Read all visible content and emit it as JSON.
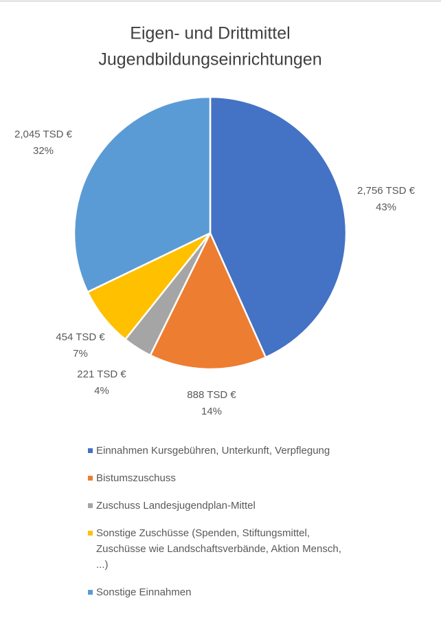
{
  "chart_data": {
    "type": "pie",
    "title": [
      "Eigen- und Drittmittel",
      "Jugendbildungseinrichtungen"
    ],
    "categories": [
      "Einnahmen Kursgebühren, Unterkunft, Verpflegung",
      "Bistumszuschuss",
      "Zuschuss Landesjugendplan-Mittel",
      "Sonstige Zuschüsse (Spenden, Stiftungsmittel, Zuschüsse wie Landschaftsverbände, Aktion Mensch, ...)",
      "Sonstige Einnahmen"
    ],
    "values": [
      2756,
      888,
      221,
      454,
      2045
    ],
    "value_labels": [
      "2,756 TSD €",
      "888 TSD €",
      "221 TSD €",
      "454 TSD €",
      "2,045 TSD €"
    ],
    "percents": [
      43,
      14,
      4,
      7,
      32
    ],
    "percent_labels": [
      "43%",
      "14%",
      "4%",
      "7%",
      "32%"
    ],
    "colors": [
      "#4472c4",
      "#ed7d31",
      "#a5a5a5",
      "#ffc000",
      "#5b9bd5"
    ],
    "legend": "bottom"
  }
}
